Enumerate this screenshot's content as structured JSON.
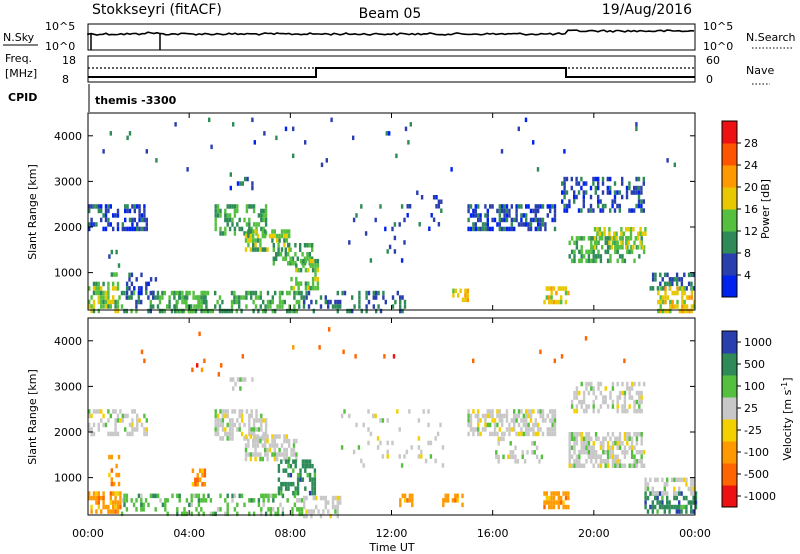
{
  "header": {
    "station": "Stokkseyri (fitACF)",
    "beam": "Beam 05",
    "date": "19/Aug/2016"
  },
  "noise_panel": {
    "left_label": "N.Sky",
    "right_label": "N.Search",
    "left_ticks": [
      "10^5",
      "10^0"
    ],
    "right_ticks": [
      "10^5",
      "10^0"
    ]
  },
  "freq_panel": {
    "left_label_1": "Freq.",
    "left_label_2": "[MHz]",
    "right_label": "Nave",
    "left_ticks": [
      "18",
      "8"
    ],
    "right_ticks": [
      "60",
      "0"
    ]
  },
  "cpid": {
    "label": "CPID",
    "value": "themis -3300"
  },
  "colors": {
    "power": [
      "#0022ee",
      "#2a3fae",
      "#2e8b57",
      "#55c040",
      "#e8c800",
      "#ff9900",
      "#ff5500",
      "#ee1111"
    ],
    "velocity": [
      "#ee1111",
      "#ff6600",
      "#ff9900",
      "#f5d000",
      "#c8c8c8",
      "#55c040",
      "#2e8b57",
      "#2a3fae"
    ],
    "ground_scatter": "#c8c8c8"
  },
  "chart_data": [
    {
      "type": "heatmap",
      "name": "power",
      "ylabel": "Slant Range [km]",
      "xlim": [
        0,
        24
      ],
      "ylim": [
        180,
        4500
      ],
      "yticks": [
        1000,
        2000,
        3000,
        4000
      ],
      "colorbar": {
        "label": "Power [dB]",
        "ticks": [
          4,
          8,
          12,
          16,
          20,
          24,
          28
        ],
        "range": [
          0,
          32
        ]
      },
      "regions": [
        {
          "x": [
            0.0,
            2.3
          ],
          "y": [
            1950,
            2500
          ],
          "v": 6,
          "d": 0.5
        },
        {
          "x": [
            0.0,
            1.2
          ],
          "y": [
            200,
            800
          ],
          "v": 14,
          "d": 0.55
        },
        {
          "x": [
            0.8,
            1.3
          ],
          "y": [
            1000,
            1500
          ],
          "v": 10,
          "d": 0.35
        },
        {
          "x": [
            1.2,
            2.8
          ],
          "y": [
            200,
            600
          ],
          "v": 10,
          "d": 0.4
        },
        {
          "x": [
            1.5,
            2.8
          ],
          "y": [
            600,
            1000
          ],
          "v": 6,
          "d": 0.2
        },
        {
          "x": [
            2.8,
            8.5
          ],
          "y": [
            200,
            600
          ],
          "v": 12,
          "d": 0.45
        },
        {
          "x": [
            5.0,
            7.0
          ],
          "y": [
            1850,
            2500
          ],
          "v": 12,
          "d": 0.5
        },
        {
          "x": [
            6.2,
            8.0
          ],
          "y": [
            1550,
            1950
          ],
          "v": 14,
          "d": 0.55
        },
        {
          "x": [
            7.3,
            8.9
          ],
          "y": [
            1250,
            1650
          ],
          "v": 12,
          "d": 0.5
        },
        {
          "x": [
            8.0,
            9.1
          ],
          "y": [
            700,
            1300
          ],
          "v": 14,
          "d": 0.55
        },
        {
          "x": [
            3.4,
            4.7
          ],
          "y": [
            200,
            600
          ],
          "v": 12,
          "d": 0.45
        },
        {
          "x": [
            5.6,
            6.5
          ],
          "y": [
            2900,
            3200
          ],
          "v": 6,
          "d": 0.3
        },
        {
          "x": [
            8.5,
            12.5
          ],
          "y": [
            200,
            600
          ],
          "v": 8,
          "d": 0.3
        },
        {
          "x": [
            10.0,
            12.5
          ],
          "y": [
            1300,
            2500
          ],
          "v": 6,
          "d": 0.08
        },
        {
          "x": [
            12.5,
            14.0
          ],
          "y": [
            2000,
            2800
          ],
          "v": 6,
          "d": 0.12
        },
        {
          "x": [
            14.4,
            15.0
          ],
          "y": [
            450,
            650
          ],
          "v": 18,
          "d": 0.6
        },
        {
          "x": [
            15.0,
            18.5
          ],
          "y": [
            2000,
            2500
          ],
          "v": 6,
          "d": 0.55
        },
        {
          "x": [
            18.0,
            19.0
          ],
          "y": [
            350,
            700
          ],
          "v": 18,
          "d": 0.6
        },
        {
          "x": [
            18.7,
            22.0
          ],
          "y": [
            2400,
            3100
          ],
          "v": 6,
          "d": 0.4
        },
        {
          "x": [
            19.0,
            22.0
          ],
          "y": [
            1250,
            1800
          ],
          "v": 12,
          "d": 0.5
        },
        {
          "x": [
            20.0,
            22.0
          ],
          "y": [
            1600,
            2000
          ],
          "v": 16,
          "d": 0.45
        },
        {
          "x": [
            22.2,
            24.0
          ],
          "y": [
            700,
            1000
          ],
          "v": 8,
          "d": 0.45
        },
        {
          "x": [
            22.5,
            24.0
          ],
          "y": [
            200,
            700
          ],
          "v": 18,
          "d": 0.5
        },
        {
          "x": [
            0.0,
            24.0
          ],
          "y": [
            3300,
            4400
          ],
          "v": 6,
          "d": 0.012
        }
      ]
    },
    {
      "type": "heatmap",
      "name": "velocity",
      "xlabel": "Time UT",
      "ylabel": "Slant Range [km]",
      "xlim": [
        0,
        24
      ],
      "ylim": [
        180,
        4500
      ],
      "xticks": [
        "00:00",
        "04:00",
        "08:00",
        "12:00",
        "16:00",
        "20:00",
        "00:00"
      ],
      "yticks": [
        1000,
        2000,
        3000,
        4000
      ],
      "colorbar": {
        "label": "Velocity [m s",
        "label_sup": "-1",
        "label_end": "]",
        "ticks": [
          "1000",
          "500",
          "100",
          "25",
          "-25",
          "-100",
          "-500",
          "-1000"
        ]
      },
      "regions": [
        {
          "x": [
            0.0,
            2.3
          ],
          "y": [
            1950,
            2500
          ],
          "c": 4,
          "d": 0.45
        },
        {
          "x": [
            0.0,
            1.3
          ],
          "y": [
            250,
            700
          ],
          "c": 2,
          "d": 0.65
        },
        {
          "x": [
            0.8,
            1.3
          ],
          "y": [
            900,
            1500
          ],
          "c": 2,
          "d": 0.4
        },
        {
          "x": [
            1.3,
            8.5
          ],
          "y": [
            200,
            650
          ],
          "c": 5,
          "d": 0.35
        },
        {
          "x": [
            4.1,
            4.7
          ],
          "y": [
            850,
            1200
          ],
          "c": 2,
          "d": 0.6
        },
        {
          "x": [
            5.0,
            7.0
          ],
          "y": [
            1850,
            2500
          ],
          "c": 4,
          "d": 0.55
        },
        {
          "x": [
            6.2,
            8.2
          ],
          "y": [
            1450,
            1950
          ],
          "c": 4,
          "d": 0.6
        },
        {
          "x": [
            7.5,
            9.0
          ],
          "y": [
            700,
            1400
          ],
          "c": 6,
          "d": 0.55
        },
        {
          "x": [
            8.5,
            10.0
          ],
          "y": [
            200,
            600
          ],
          "c": 4,
          "d": 0.45
        },
        {
          "x": [
            5.6,
            6.5
          ],
          "y": [
            2900,
            3200
          ],
          "c": 4,
          "d": 0.3
        },
        {
          "x": [
            12.3,
            12.8
          ],
          "y": [
            400,
            650
          ],
          "c": 2,
          "d": 0.6
        },
        {
          "x": [
            14.0,
            15.0
          ],
          "y": [
            450,
            650
          ],
          "c": 2,
          "d": 0.5
        },
        {
          "x": [
            15.0,
            18.5
          ],
          "y": [
            1950,
            2500
          ],
          "c": 4,
          "d": 0.6
        },
        {
          "x": [
            16.0,
            18.0
          ],
          "y": [
            1400,
            1900
          ],
          "c": 4,
          "d": 0.3
        },
        {
          "x": [
            18.0,
            19.0
          ],
          "y": [
            350,
            700
          ],
          "c": 2,
          "d": 0.7
        },
        {
          "x": [
            19.0,
            22.0
          ],
          "y": [
            1250,
            2000
          ],
          "c": 4,
          "d": 0.6
        },
        {
          "x": [
            19.0,
            22.0
          ],
          "y": [
            2500,
            3100
          ],
          "c": 4,
          "d": 0.4
        },
        {
          "x": [
            22.0,
            24.0
          ],
          "y": [
            250,
            700
          ],
          "c": 6,
          "d": 0.55
        },
        {
          "x": [
            22.0,
            24.0
          ],
          "y": [
            700,
            1000
          ],
          "c": 4,
          "d": 0.45
        },
        {
          "x": [
            10.0,
            14.0
          ],
          "y": [
            1300,
            2500
          ],
          "c": 4,
          "d": 0.08
        },
        {
          "x": [
            0.0,
            24.0
          ],
          "y": [
            3300,
            4400
          ],
          "c": 1,
          "d": 0.008
        }
      ]
    }
  ]
}
